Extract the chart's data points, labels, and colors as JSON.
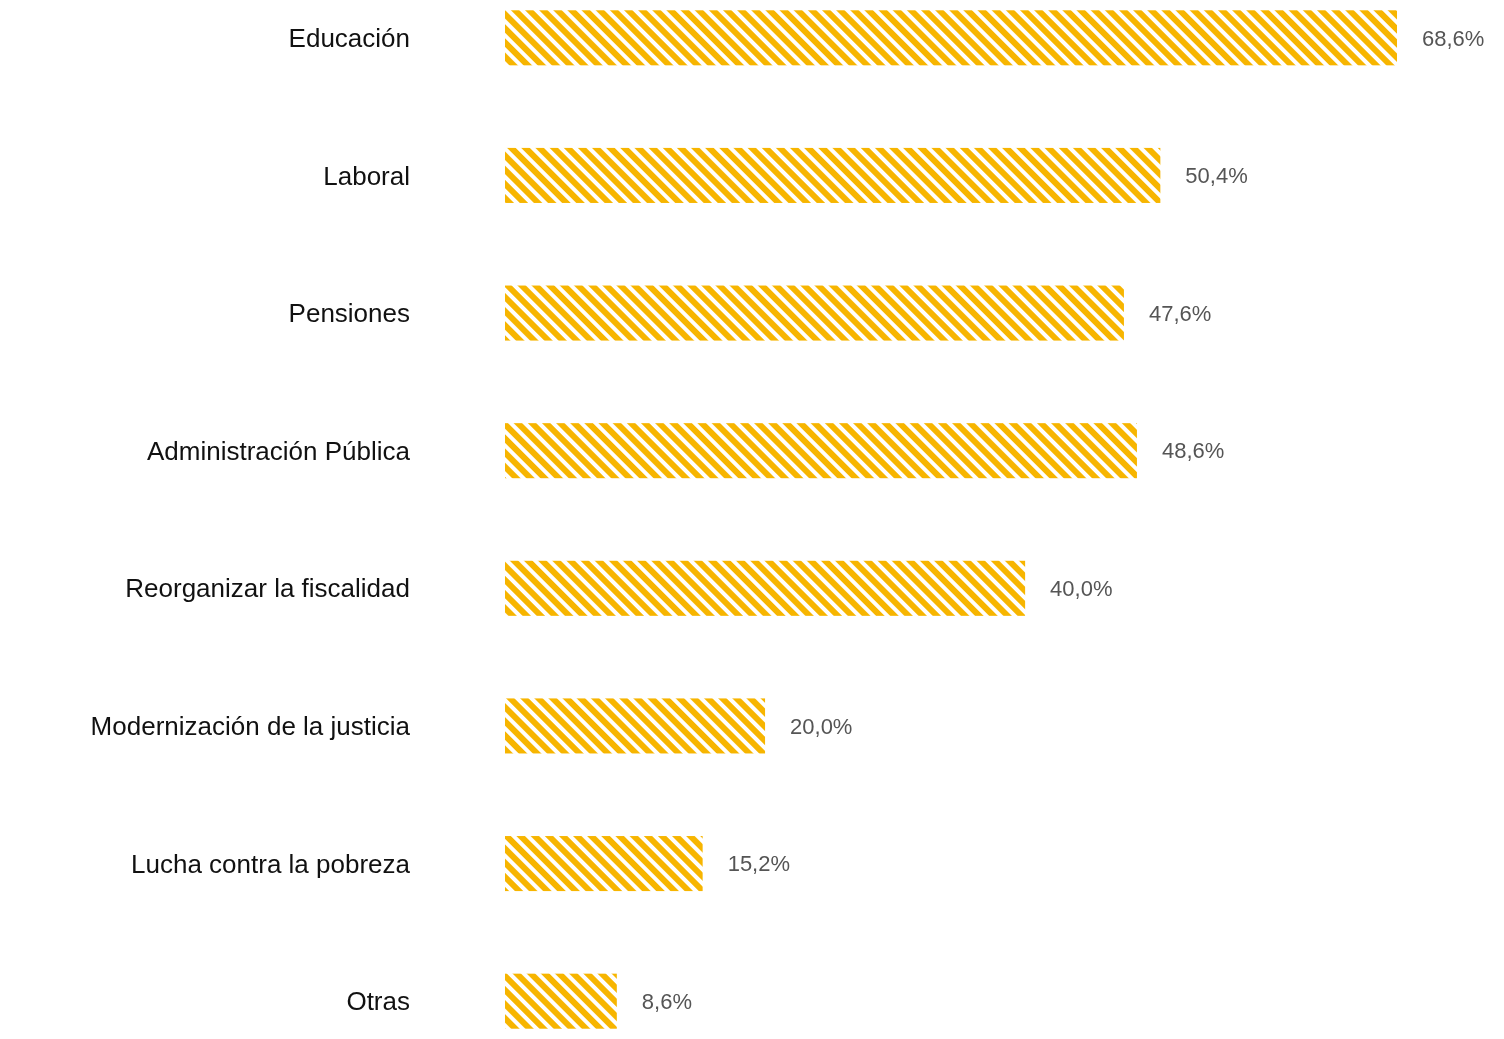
{
  "chart_data": {
    "type": "bar",
    "orientation": "horizontal",
    "categories": [
      "Educación",
      "Laboral",
      "Pensiones",
      "Administración Pública",
      "Reorganizar la fiscalidad",
      "Modernización de la justicia",
      "Lucha contra la pobreza",
      "Otras"
    ],
    "values": [
      68.6,
      50.4,
      47.6,
      48.6,
      40.0,
      20.0,
      15.2,
      8.6
    ],
    "value_labels": [
      "68,6%",
      "50,4%",
      "47,6%",
      "48,6%",
      "40,0%",
      "20,0%",
      "15,2%",
      "8,6%"
    ],
    "color": "#f7b500",
    "grid": false
  }
}
